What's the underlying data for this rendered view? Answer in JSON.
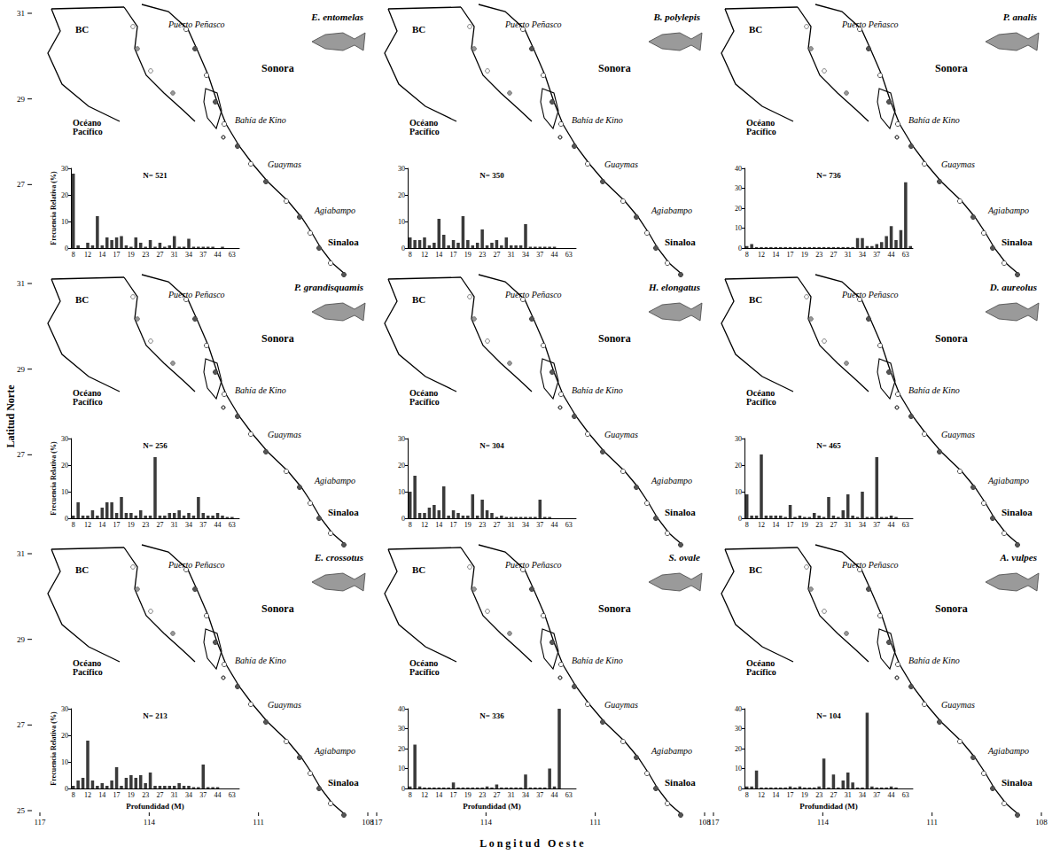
{
  "figure": {
    "latitude": {
      "title": "Latitud Norte",
      "ticks": [
        31,
        29,
        27,
        25
      ]
    },
    "longitude": {
      "title": "Longitud Oeste",
      "ticks": [
        117,
        114,
        111,
        108
      ]
    }
  },
  "map": {
    "region": "BC",
    "ocean": "Océano Pacífico",
    "state_north": "Sonora",
    "state_south": "Sinaloa",
    "places": [
      "Puerto Peñasco",
      "Bahía de Kino",
      "Guaymas",
      "Agiabampo"
    ]
  },
  "chart_data": [
    {
      "type": "bar",
      "title": "E. entomelas",
      "annotation": "N= 521",
      "ylabel": "Frecuencia Relativa (%)",
      "categories": [
        "8",
        null,
        null,
        "12",
        null,
        null,
        "14",
        null,
        null,
        "17",
        null,
        null,
        "19",
        null,
        null,
        "23",
        null,
        null,
        "27",
        null,
        null,
        "31",
        null,
        null,
        "34",
        null,
        null,
        "37",
        null,
        null,
        "44",
        null,
        null,
        "63",
        null
      ],
      "values": [
        28,
        1,
        0,
        2,
        1,
        12,
        1,
        4,
        3,
        4,
        4.5,
        1,
        0.5,
        4,
        2,
        0.5,
        3,
        0.5,
        2,
        0.5,
        1,
        4.5,
        0.5,
        0.5,
        3.5,
        0.5,
        0.5,
        0.5,
        0.5,
        0.5,
        0,
        0.5,
        0,
        0,
        0
      ],
      "color": "#3a3a3a",
      "ylim": [
        0,
        30
      ],
      "yticks": [
        0,
        10,
        20,
        30
      ],
      "grid": false
    },
    {
      "type": "bar",
      "title": "B. polylepis",
      "annotation": "N= 350",
      "categories": [
        "8",
        null,
        null,
        "12",
        null,
        null,
        "14",
        null,
        null,
        "17",
        null,
        null,
        "19",
        null,
        null,
        "23",
        null,
        null,
        "27",
        null,
        null,
        "31",
        null,
        null,
        "34",
        null,
        null,
        "37",
        null,
        null,
        "44",
        null,
        null,
        "63",
        null
      ],
      "values": [
        4,
        3,
        3,
        4,
        1,
        2,
        11,
        5,
        1,
        3,
        2,
        12,
        3,
        1,
        2,
        7,
        1,
        2,
        3,
        1,
        4,
        1,
        1,
        1,
        9,
        0.5,
        0.5,
        0.5,
        0.5,
        0.5,
        0.5,
        0,
        0,
        0,
        0
      ],
      "color": "#3a3a3a",
      "ylim": [
        0,
        30
      ],
      "yticks": [
        0,
        10,
        20,
        30
      ],
      "grid": false
    },
    {
      "type": "bar",
      "title": "P. analis",
      "annotation": "N= 736",
      "categories": [
        "8",
        null,
        null,
        "12",
        null,
        null,
        "14",
        null,
        null,
        "17",
        null,
        null,
        "19",
        null,
        null,
        "23",
        null,
        null,
        "27",
        null,
        null,
        "31",
        null,
        null,
        "34",
        null,
        null,
        "37",
        null,
        null,
        "44",
        null,
        null,
        "63",
        null
      ],
      "values": [
        1,
        2,
        0.5,
        0.5,
        0.5,
        0.5,
        0.5,
        0.5,
        0.5,
        0.5,
        0.5,
        0.5,
        0.5,
        0.5,
        0.5,
        0.5,
        0.5,
        0.5,
        0.5,
        0.5,
        0.5,
        0.5,
        0.5,
        5,
        5,
        1,
        1,
        2,
        3,
        6,
        11,
        4,
        9,
        33,
        1
      ],
      "color": "#3a3a3a",
      "ylim": [
        0,
        40
      ],
      "yticks": [
        0,
        10,
        20,
        30,
        40
      ],
      "grid": false
    },
    {
      "type": "bar",
      "title": "P. grandisquamis",
      "annotation": "N= 256",
      "ylabel": "Frecuencia Relativa (%)",
      "categories": [
        "8",
        null,
        null,
        "12",
        null,
        null,
        "14",
        null,
        null,
        "17",
        null,
        null,
        "19",
        null,
        null,
        "23",
        null,
        null,
        "27",
        null,
        null,
        "31",
        null,
        null,
        "34",
        null,
        null,
        "37",
        null,
        null,
        "44",
        null,
        null,
        "63",
        null
      ],
      "values": [
        1,
        6,
        1,
        1,
        3,
        1,
        4,
        6,
        6,
        2,
        8,
        2,
        2,
        1,
        3,
        1,
        1,
        23,
        1,
        1,
        2,
        2,
        3,
        1,
        2,
        1,
        8,
        2,
        1,
        1,
        2,
        1,
        0.5,
        0.5,
        0
      ],
      "color": "#3a3a3a",
      "ylim": [
        0,
        30
      ],
      "yticks": [
        0,
        10,
        20,
        30
      ],
      "grid": false
    },
    {
      "type": "bar",
      "title": "H. elongatus",
      "annotation": "N= 304",
      "categories": [
        "8",
        null,
        null,
        "12",
        null,
        null,
        "14",
        null,
        null,
        "17",
        null,
        null,
        "19",
        null,
        null,
        "23",
        null,
        null,
        "27",
        null,
        null,
        "31",
        null,
        null,
        "34",
        null,
        null,
        "37",
        null,
        null,
        "44",
        null,
        null,
        "63",
        null
      ],
      "values": [
        10,
        16,
        2,
        2,
        4,
        5,
        3,
        12,
        1,
        3,
        2,
        1,
        1,
        9,
        1,
        7,
        3,
        2,
        0.5,
        1,
        0.5,
        0.5,
        0.5,
        0.5,
        0.5,
        0.5,
        0.5,
        7,
        0.5,
        0.5,
        0,
        0,
        0,
        0,
        0
      ],
      "color": "#3a3a3a",
      "ylim": [
        0,
        30
      ],
      "yticks": [
        0,
        10,
        20,
        30
      ],
      "grid": false
    },
    {
      "type": "bar",
      "title": "D. aureolus",
      "annotation": "N= 465",
      "categories": [
        "8",
        null,
        null,
        "12",
        null,
        null,
        "14",
        null,
        null,
        "17",
        null,
        null,
        "19",
        null,
        null,
        "23",
        null,
        null,
        "27",
        null,
        null,
        "31",
        null,
        null,
        "34",
        null,
        null,
        "37",
        null,
        null,
        "44",
        null,
        null,
        "63",
        null
      ],
      "values": [
        9,
        1,
        1,
        24,
        1,
        1,
        1,
        1,
        0.5,
        5,
        0.5,
        1,
        0.5,
        0.5,
        2,
        1,
        0.5,
        8,
        1,
        0.5,
        3,
        9,
        1,
        0.5,
        10,
        0.5,
        0.5,
        23,
        0.5,
        0.5,
        1,
        0.5,
        0,
        0,
        0
      ],
      "color": "#3a3a3a",
      "ylim": [
        0,
        30
      ],
      "yticks": [
        0,
        10,
        20,
        30
      ],
      "grid": false
    },
    {
      "type": "bar",
      "title": "E. crossotus",
      "annotation": "N= 213",
      "ylabel": "Frecuencia Relativa (%)",
      "xlabel": "Profundidad (M)",
      "categories": [
        "8",
        null,
        null,
        "12",
        null,
        null,
        "14",
        null,
        null,
        "17",
        null,
        null,
        "19",
        null,
        null,
        "23",
        null,
        null,
        "27",
        null,
        null,
        "31",
        null,
        null,
        "34",
        null,
        null,
        "37",
        null,
        null,
        "44",
        null,
        null,
        "63",
        null
      ],
      "values": [
        1,
        3,
        4,
        18,
        3,
        1,
        2,
        1,
        3,
        8,
        1,
        4,
        5,
        4,
        5,
        2,
        6,
        1,
        1,
        1,
        1,
        1,
        2,
        1,
        1,
        0.5,
        0.5,
        9,
        0.5,
        0.5,
        0.5,
        0,
        0,
        0,
        0
      ],
      "color": "#3a3a3a",
      "ylim": [
        0,
        30
      ],
      "yticks": [
        0,
        10,
        20,
        30
      ],
      "grid": false
    },
    {
      "type": "bar",
      "title": "S. ovale",
      "annotation": "N= 336",
      "xlabel": "Profundidad (M)",
      "categories": [
        "8",
        null,
        null,
        "12",
        null,
        null,
        "14",
        null,
        null,
        "17",
        null,
        null,
        "19",
        null,
        null,
        "23",
        null,
        null,
        "27",
        null,
        null,
        "31",
        null,
        null,
        "34",
        null,
        null,
        "37",
        null,
        null,
        "44",
        null,
        null,
        "63",
        null
      ],
      "values": [
        1,
        22,
        1,
        0.5,
        0.5,
        0.5,
        0.5,
        0.5,
        0.5,
        3,
        0.5,
        0.5,
        0.5,
        0.5,
        0.5,
        0.5,
        1,
        0.5,
        2,
        0.5,
        0.5,
        0.5,
        0.5,
        0.5,
        7,
        0.5,
        0.5,
        0.5,
        0.5,
        10,
        1,
        40,
        0,
        0,
        0
      ],
      "color": "#3a3a3a",
      "ylim": [
        0,
        40
      ],
      "yticks": [
        0,
        10,
        20,
        30,
        40
      ],
      "grid": false
    },
    {
      "type": "bar",
      "title": "A. vulpes",
      "annotation": "N= 104",
      "xlabel": "Profundidad (M)",
      "categories": [
        "8",
        null,
        null,
        "12",
        null,
        null,
        "14",
        null,
        null,
        "17",
        null,
        null,
        "19",
        null,
        null,
        "23",
        null,
        null,
        "27",
        null,
        null,
        "31",
        null,
        null,
        "34",
        null,
        null,
        "37",
        null,
        null,
        "44",
        null,
        null,
        "63",
        null
      ],
      "values": [
        1,
        1,
        9,
        0.5,
        0.5,
        0.5,
        0.5,
        0.5,
        0.5,
        1,
        0.5,
        1,
        0.5,
        0.5,
        0.5,
        1,
        15,
        0.5,
        7,
        0.5,
        4,
        8,
        3,
        0.5,
        0.5,
        38,
        1,
        0.5,
        0.5,
        0.5,
        1,
        0.5,
        0,
        0,
        0
      ],
      "color": "#3a3a3a",
      "ylim": [
        0,
        40
      ],
      "yticks": [
        0,
        10,
        20,
        30,
        40
      ],
      "grid": false
    }
  ]
}
